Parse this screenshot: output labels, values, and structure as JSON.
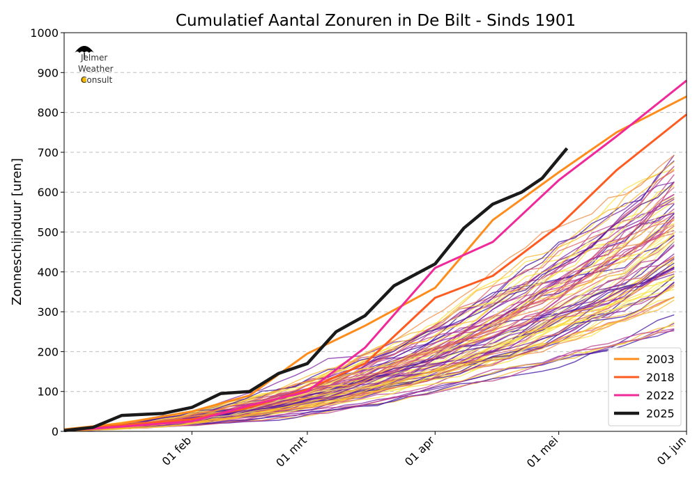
{
  "chart_data": {
    "type": "line",
    "title": "Cumulatief Aantal Zonuren in De Bilt - Sinds 1901",
    "ylabel": "Zonneschijnduur [uren]",
    "xlabel": "",
    "ylim": [
      0,
      1000
    ],
    "xlim": [
      "2025-01-01",
      "2025-06-01"
    ],
    "y_ticks": [
      0,
      100,
      200,
      300,
      400,
      500,
      600,
      700,
      800,
      900,
      1000
    ],
    "x_ticks": [
      {
        "date": "2025-02-01",
        "label": "01 feb"
      },
      {
        "date": "2025-03-01",
        "label": "01 mrt"
      },
      {
        "date": "2025-04-01",
        "label": "01 apr"
      },
      {
        "date": "2025-05-01",
        "label": "01 mei"
      },
      {
        "date": "2025-06-01",
        "label": "01 jun"
      }
    ],
    "grid": "horizontal dashed",
    "legend_position": "bottom-right",
    "background_years_colormap": [
      "#3b0f9e",
      "#7a1fa2",
      "#b8358a",
      "#dd5e66",
      "#f0883e",
      "#f9b72a",
      "#f9e23c",
      "#f5f07a"
    ],
    "background_years_range": [
      1901,
      2024
    ],
    "series": [
      {
        "name": "2003",
        "color": "#ff8c1a",
        "x": [
          "2025-01-01",
          "2025-01-15",
          "2025-02-01",
          "2025-02-15",
          "2025-03-01",
          "2025-03-15",
          "2025-04-01",
          "2025-04-15",
          "2025-05-01",
          "2025-05-15",
          "2025-06-01"
        ],
        "y": [
          5,
          20,
          50,
          90,
          195,
          265,
          360,
          530,
          650,
          750,
          840
        ]
      },
      {
        "name": "2018",
        "color": "#ff5a1f",
        "x": [
          "2025-01-01",
          "2025-01-15",
          "2025-02-01",
          "2025-02-15",
          "2025-03-01",
          "2025-03-15",
          "2025-04-01",
          "2025-04-15",
          "2025-05-01",
          "2025-05-15",
          "2025-06-01"
        ],
        "y": [
          3,
          15,
          30,
          60,
          105,
          170,
          335,
          390,
          515,
          655,
          795
        ]
      },
      {
        "name": "2022",
        "color": "#f0289a",
        "x": [
          "2025-01-01",
          "2025-01-15",
          "2025-02-01",
          "2025-02-15",
          "2025-03-01",
          "2025-03-15",
          "2025-04-01",
          "2025-04-15",
          "2025-05-01",
          "2025-05-15",
          "2025-06-01"
        ],
        "y": [
          2,
          12,
          25,
          65,
          100,
          210,
          410,
          475,
          630,
          740,
          880
        ]
      },
      {
        "name": "2025",
        "color": "#1a1a1a",
        "x": [
          "2025-01-01",
          "2025-01-08",
          "2025-01-15",
          "2025-01-25",
          "2025-02-01",
          "2025-02-08",
          "2025-02-15",
          "2025-02-22",
          "2025-03-01",
          "2025-03-08",
          "2025-03-15",
          "2025-03-22",
          "2025-04-01",
          "2025-04-08",
          "2025-04-15",
          "2025-04-22",
          "2025-04-27",
          "2025-05-03"
        ],
        "y": [
          2,
          10,
          40,
          45,
          60,
          95,
          100,
          145,
          170,
          250,
          290,
          365,
          420,
          510,
          570,
          600,
          635,
          710
        ]
      }
    ]
  },
  "logo": {
    "line1": "Jelmer",
    "line2": "Weather",
    "line3": "Consult"
  }
}
